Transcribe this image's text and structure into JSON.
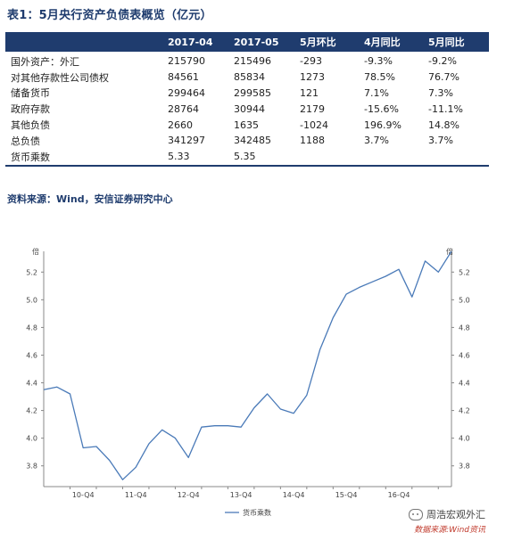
{
  "table_title": "表1：5月央行资产负债表概览（亿元）",
  "table": {
    "headers": [
      "",
      "2017-04",
      "2017-05",
      "5月环比",
      "4月同比",
      "5月同比"
    ],
    "rows": [
      [
        "国外资产：外汇",
        "215790",
        "215496",
        "-293",
        "-9.3%",
        "-9.2%"
      ],
      [
        "对其他存款性公司债权",
        "84561",
        "85834",
        "1273",
        "78.5%",
        "76.7%"
      ],
      [
        "储备货币",
        "299464",
        "299585",
        "121",
        "7.1%",
        "7.3%"
      ],
      [
        "政府存款",
        "28764",
        "30944",
        "2179",
        "-15.6%",
        "-11.1%"
      ],
      [
        "其他负债",
        "2660",
        "1635",
        "-1024",
        "196.9%",
        "14.8%"
      ],
      [
        "总负债",
        "341297",
        "342485",
        "1188",
        "3.7%",
        "3.7%"
      ],
      [
        "货币乘数",
        "5.33",
        "5.35",
        "",
        "",
        ""
      ]
    ]
  },
  "source_note": "资料来源：Wind，安信证券研究中心",
  "watermark": {
    "name": "周浩宏观外汇",
    "source": "数据来源:Wind资讯",
    "icon": "wechat-icon"
  },
  "colors": {
    "header_bg": "#1f3c6e",
    "line": "#4a7ab8"
  },
  "chart_data": {
    "type": "line",
    "unit_left": "倍",
    "unit_right": "倍",
    "x_tick_labels": [
      "10-Q4",
      "11-Q4",
      "12-Q4",
      "13-Q4",
      "14-Q4",
      "15-Q4",
      "16-Q4"
    ],
    "y_ticks": [
      3.8,
      4.0,
      4.2,
      4.4,
      4.6,
      4.8,
      5.0,
      5.2
    ],
    "ylim": [
      3.65,
      5.35
    ],
    "series": [
      {
        "name": "货币乘数",
        "x": [
          0,
          0.25,
          0.5,
          0.75,
          1,
          1.25,
          1.5,
          1.75,
          2,
          2.25,
          2.5,
          2.75,
          3,
          3.25,
          3.5,
          3.75,
          4,
          4.25,
          4.5,
          4.75,
          5,
          5.25,
          5.5,
          5.75,
          6,
          6.25,
          6.5,
          6.75,
          7,
          7.25,
          7.5,
          7.75
        ],
        "values": [
          4.35,
          4.37,
          4.32,
          3.93,
          3.94,
          3.84,
          3.7,
          3.79,
          3.96,
          4.06,
          4.0,
          3.86,
          4.08,
          4.09,
          4.09,
          4.08,
          4.22,
          4.32,
          4.21,
          4.18,
          4.31,
          4.64,
          4.87,
          5.04,
          5.09,
          5.13,
          5.17,
          5.22,
          5.02,
          5.28,
          5.2,
          5.38
        ]
      }
    ],
    "legend": "货币乘数",
    "legend_position": "bottom-left",
    "grid": false
  }
}
